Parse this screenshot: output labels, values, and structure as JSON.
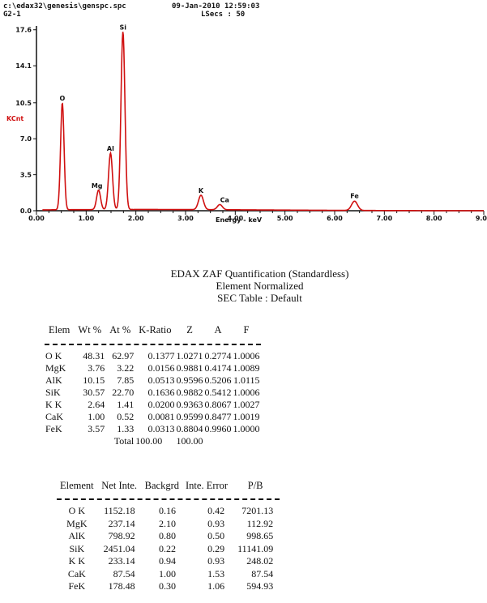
{
  "header": {
    "path": "c:\\edax32\\genesis\\genspc.spc",
    "date": "09-Jan-2010 12:59:03",
    "code": "G2-1",
    "lsecs": "LSecs : 50"
  },
  "chart_data": {
    "type": "line",
    "xlabel": "Energy - keV",
    "ylabel": "KCnt",
    "xlim": [
      0,
      9
    ],
    "ylim": [
      0,
      17.5
    ],
    "x_ticks": [
      "0.00",
      "1.00",
      "2.00",
      "3.00",
      "4.00",
      "5.00",
      "6.00",
      "7.00",
      "8.00",
      "9.0"
    ],
    "y_ticks": [
      "0.0",
      "3.5",
      "7.0",
      "10.5",
      "14.1",
      "17.6"
    ],
    "y_tick_values": [
      0,
      3.5,
      7.0,
      10.5,
      14.1,
      17.6
    ],
    "line_color": "#d01010",
    "background": 0.12,
    "peaks": [
      {
        "label": "O",
        "energy": 0.52,
        "kcnt": 10.4,
        "width": 0.035
      },
      {
        "label": "Mg",
        "energy": 1.25,
        "kcnt": 1.9,
        "width": 0.04
      },
      {
        "label": "Al",
        "energy": 1.49,
        "kcnt": 5.5,
        "width": 0.04
      },
      {
        "label": "Si",
        "energy": 1.74,
        "kcnt": 17.3,
        "width": 0.04
      },
      {
        "label": "K",
        "energy": 3.31,
        "kcnt": 1.4,
        "width": 0.05
      },
      {
        "label": "Ca",
        "energy": 3.69,
        "kcnt": 0.5,
        "width": 0.05
      },
      {
        "label": "Fe",
        "energy": 6.4,
        "kcnt": 0.9,
        "width": 0.06
      }
    ]
  },
  "report": {
    "title_lines": [
      "EDAX ZAF Quantification (Standardless)",
      "Element Normalized",
      "SEC Table : Default"
    ],
    "table1": {
      "headers": [
        "Elem",
        "Wt %",
        "At %",
        "K-Ratio",
        "Z",
        "A",
        "F"
      ],
      "rows": [
        [
          "O K",
          "48.31",
          "62.97",
          "0.1377",
          "1.0271",
          "0.2774",
          "1.0006"
        ],
        [
          "MgK",
          "3.76",
          "3.22",
          "0.0156",
          "0.9881",
          "0.4174",
          "1.0089"
        ],
        [
          "AlK",
          "10.15",
          "7.85",
          "0.0513",
          "0.9596",
          "0.5206",
          "1.0115"
        ],
        [
          "SiK",
          "30.57",
          "22.70",
          "0.1636",
          "0.9882",
          "0.5412",
          "1.0006"
        ],
        [
          "K K",
          "2.64",
          "1.41",
          "0.0200",
          "0.9363",
          "0.8067",
          "1.0027"
        ],
        [
          "CaK",
          "1.00",
          "0.52",
          "0.0081",
          "0.9599",
          "0.8477",
          "1.0019"
        ],
        [
          "FeK",
          "3.57",
          "1.33",
          "0.0313",
          "0.8804",
          "0.9960",
          "1.0000"
        ]
      ],
      "total_label": "Total",
      "total_wt": "100.00",
      "total_at": "100.00"
    },
    "table2": {
      "headers": [
        "Element",
        "Net Inte.",
        "Backgrd",
        "Inte. Error",
        "P/B"
      ],
      "rows": [
        [
          "O K",
          "1152.18",
          "0.16",
          "0.42",
          "7201.13"
        ],
        [
          "MgK",
          "237.14",
          "2.10",
          "0.93",
          "112.92"
        ],
        [
          "AlK",
          "798.92",
          "0.80",
          "0.50",
          "998.65"
        ],
        [
          "SiK",
          "2451.04",
          "0.22",
          "0.29",
          "11141.09"
        ],
        [
          "K K",
          "233.14",
          "0.94",
          "0.93",
          "248.02"
        ],
        [
          "CaK",
          "87.54",
          "1.00",
          "1.53",
          "87.54"
        ],
        [
          "FeK",
          "178.48",
          "0.30",
          "1.06",
          "594.93"
        ]
      ]
    }
  }
}
